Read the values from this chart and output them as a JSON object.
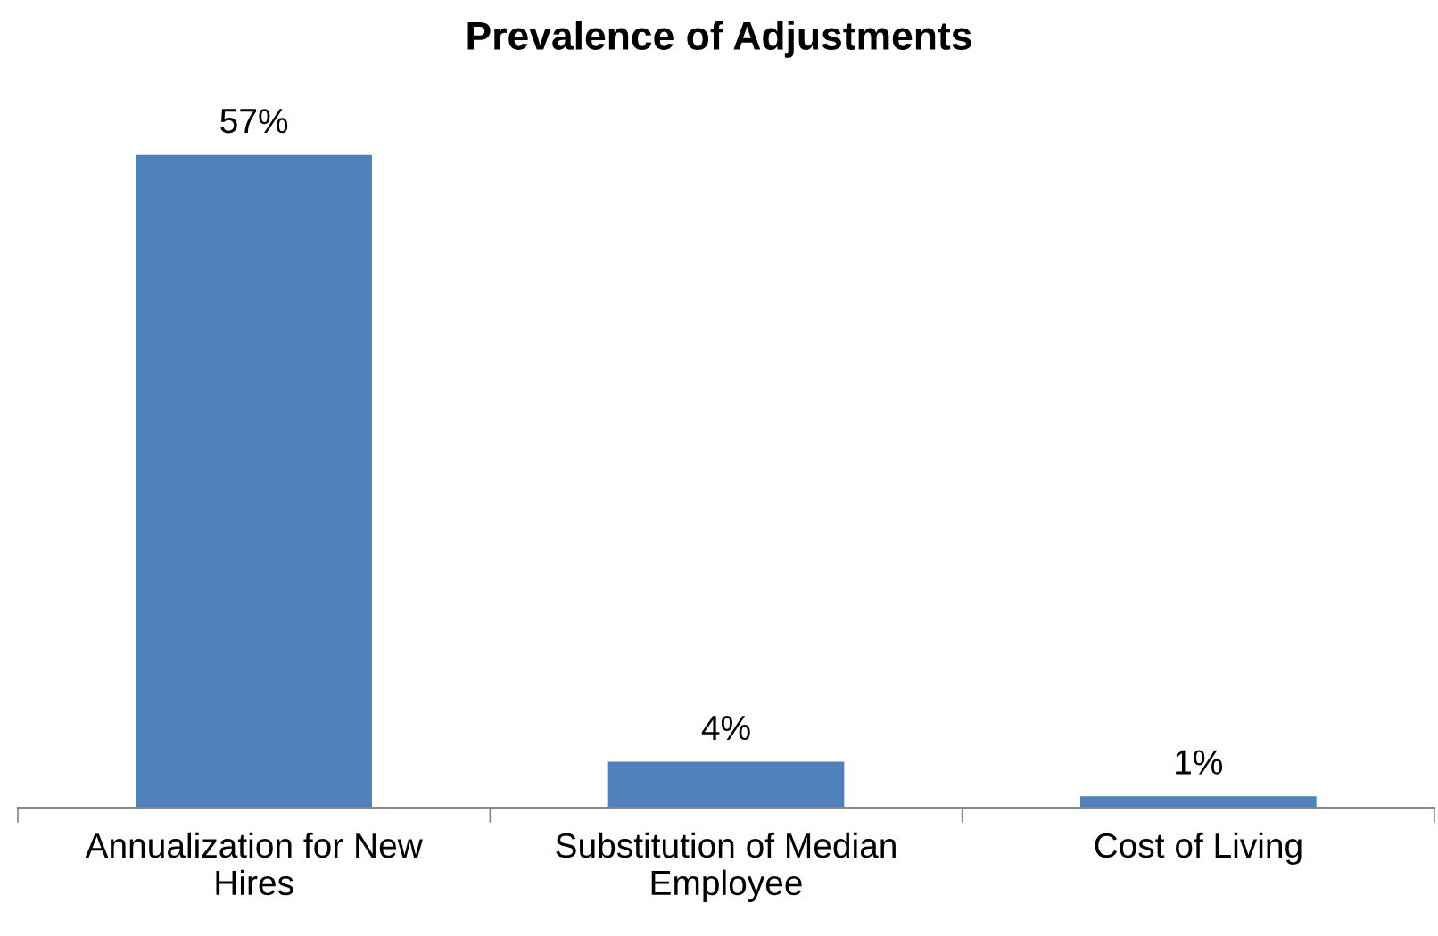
{
  "chart_data": {
    "type": "bar",
    "title": "Prevalence of Adjustments",
    "categories": [
      "Annualization for New\nHires",
      "Substitution of Median\nEmployee",
      "Cost of Living"
    ],
    "values": [
      57,
      4,
      1
    ],
    "value_labels": [
      "57%",
      "4%",
      "1%"
    ],
    "color": "#4f81bd",
    "grid": false,
    "legend": false
  }
}
